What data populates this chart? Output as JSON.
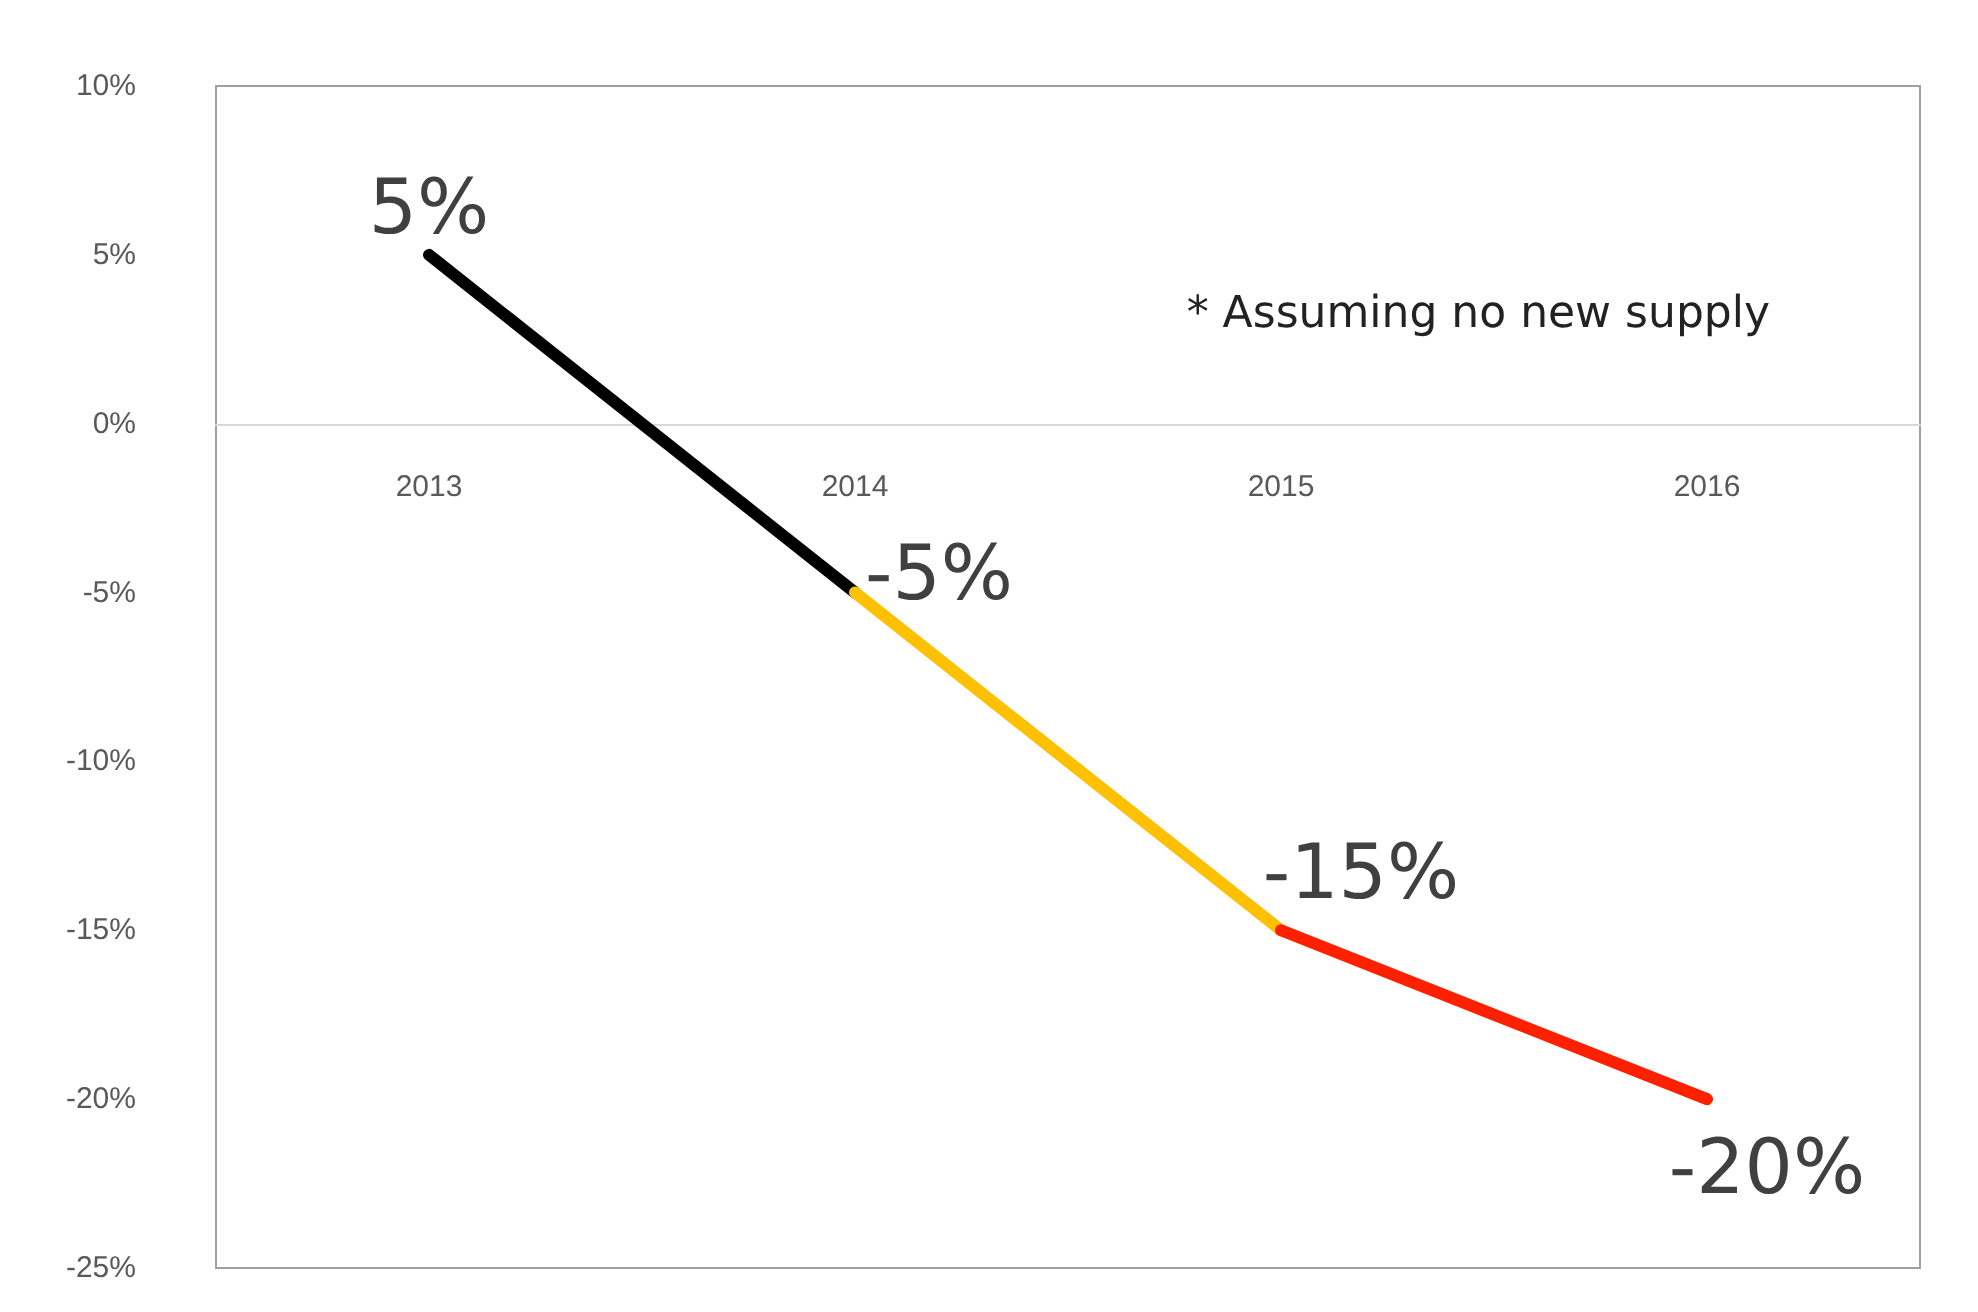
{
  "chart_data": {
    "type": "line",
    "categories": [
      "2013",
      "2014",
      "2015",
      "2016"
    ],
    "series": [
      {
        "color": "#000000",
        "values": [
          5,
          -5,
          null,
          null
        ],
        "value_labels": [
          "5%",
          null,
          null,
          null
        ]
      },
      {
        "color": "#ffc000",
        "values": [
          null,
          -5,
          -15,
          null
        ],
        "value_labels": [
          null,
          "-5%",
          null,
          null
        ]
      },
      {
        "color": "#ff2000",
        "values": [
          null,
          null,
          -15,
          -20
        ],
        "value_labels": [
          null,
          null,
          "-15%",
          "-20%"
        ]
      }
    ],
    "ylim": [
      -25,
      10
    ],
    "yticks": [
      {
        "value": -25,
        "label": "-25%"
      },
      {
        "value": -20,
        "label": "-20%"
      },
      {
        "value": -15,
        "label": "-15%"
      },
      {
        "value": -10,
        "label": "-10%"
      },
      {
        "value": -5,
        "label": "-5%"
      },
      {
        "value": 0,
        "label": "0%"
      },
      {
        "value": 5,
        "label": "5%"
      },
      {
        "value": 10,
        "label": "10%"
      }
    ],
    "annotations": [
      "* Assuming no new supply"
    ],
    "grid": false,
    "marker": "none",
    "line_style": "solid"
  }
}
